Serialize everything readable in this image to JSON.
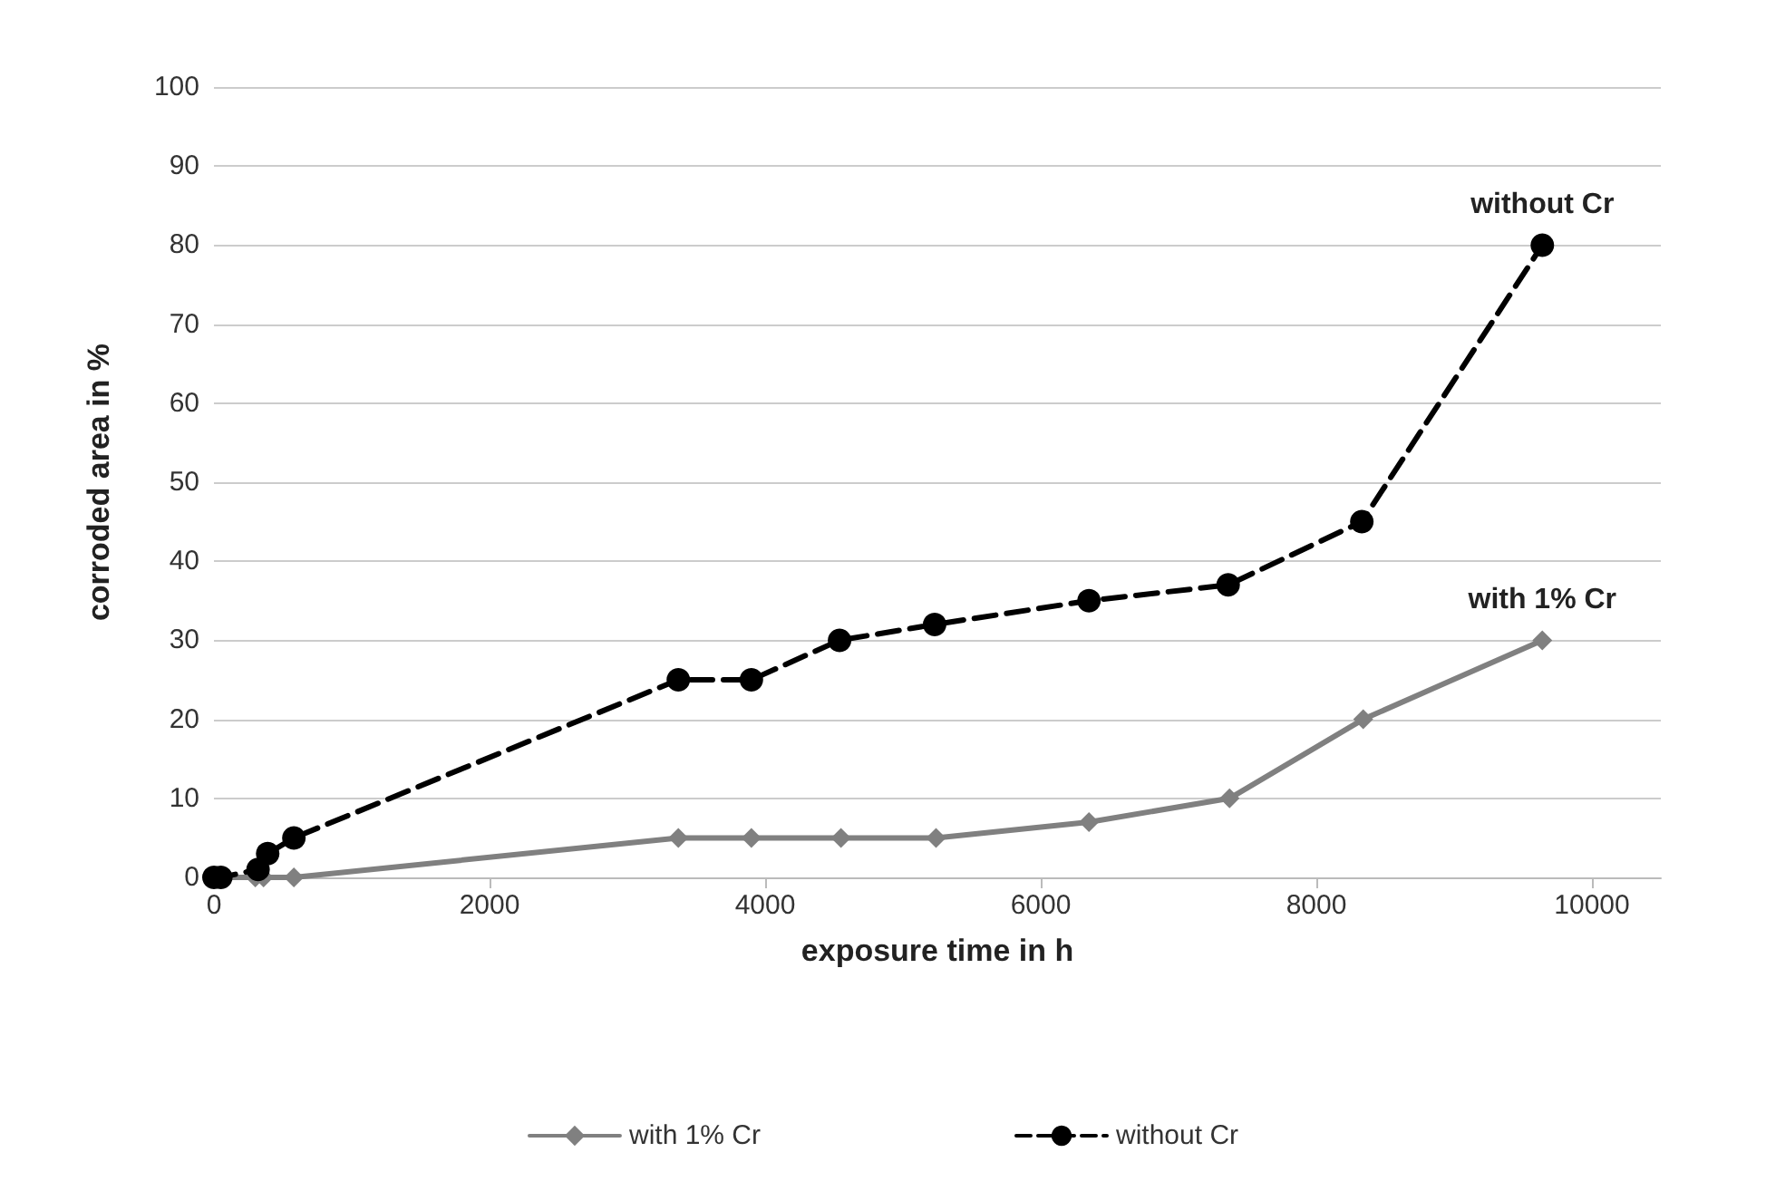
{
  "chart_data": {
    "type": "line",
    "xlabel": "exposure time in h",
    "ylabel": "corroded area in %",
    "xlim": [
      0,
      10500
    ],
    "xticks": [
      0,
      2000,
      4000,
      6000,
      8000,
      10000
    ],
    "ylim": [
      0,
      100
    ],
    "yticks": [
      0,
      10,
      20,
      30,
      40,
      50,
      60,
      70,
      80,
      90,
      100
    ],
    "grid": "y",
    "legend": "bottom",
    "series": [
      {
        "name": "with 1% Cr",
        "color": "#808080",
        "marker": "diamond",
        "line_style": "solid",
        "x": [
          0,
          50,
          300,
          360,
          580,
          3370,
          3900,
          4550,
          5240,
          6350,
          7370,
          8340,
          9640
        ],
        "values": [
          0,
          0,
          0,
          0,
          0,
          5,
          5,
          5,
          5,
          7,
          10,
          20,
          30
        ]
      },
      {
        "name": "without Cr",
        "color": "#000000",
        "marker": "circle",
        "line_style": "dashed",
        "x": [
          0,
          50,
          260,
          320,
          390,
          580,
          3370,
          3900,
          4540,
          5230,
          6350,
          7360,
          8330,
          9640
        ],
        "values": [
          0,
          0,
          null,
          1,
          3,
          5,
          25,
          25,
          30,
          32,
          35,
          37,
          45,
          80
        ]
      }
    ],
    "annotations": [
      {
        "text": "without Cr",
        "x": 9640,
        "y": 80
      },
      {
        "text": "with 1% Cr",
        "x": 9640,
        "y": 30
      }
    ]
  }
}
